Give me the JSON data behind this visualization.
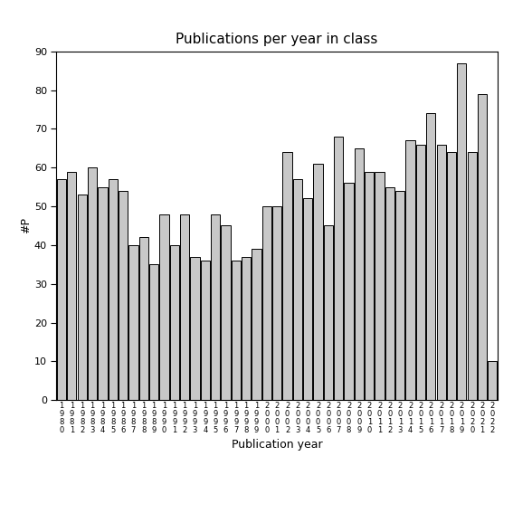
{
  "title": "Publications per year in class",
  "xlabel": "Publication year",
  "ylabel": "#P",
  "years": [
    "1980",
    "1981",
    "1982",
    "1983",
    "1984",
    "1985",
    "1986",
    "1987",
    "1988",
    "1989",
    "1990",
    "1991",
    "1992",
    "1993",
    "1994",
    "1995",
    "1996",
    "1997",
    "1998",
    "1999",
    "2000",
    "2001",
    "2002",
    "2003",
    "2004",
    "2005",
    "2006",
    "2007",
    "2008",
    "2009",
    "2010",
    "2011",
    "2012",
    "2013",
    "2014",
    "2015",
    "2016",
    "2017",
    "2018",
    "2019",
    "2020",
    "2021",
    "2022"
  ],
  "values": [
    57,
    59,
    53,
    60,
    55,
    57,
    54,
    40,
    42,
    35,
    48,
    40,
    48,
    37,
    36,
    48,
    45,
    36,
    37,
    39,
    50,
    50,
    64,
    57,
    52,
    61,
    45,
    68,
    56,
    65,
    59,
    59,
    55,
    54,
    67,
    66,
    74,
    66,
    64,
    87,
    64,
    79,
    10
  ],
  "bar_color": "#c8c8c8",
  "bar_edge_color": "#000000",
  "ylim": [
    0,
    90
  ],
  "yticks": [
    0,
    10,
    20,
    30,
    40,
    50,
    60,
    70,
    80,
    90
  ],
  "background_color": "#ffffff",
  "title_fontsize": 11,
  "label_fontsize": 9,
  "tick_fontsize": 8
}
